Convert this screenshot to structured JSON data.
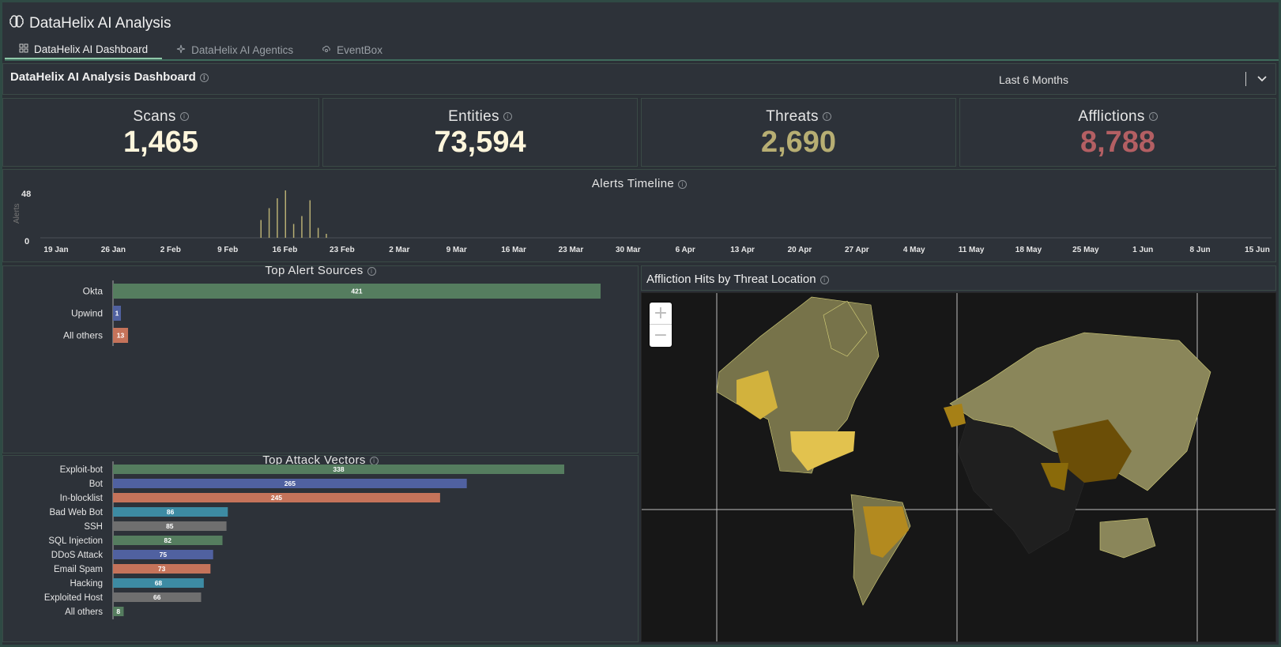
{
  "header": {
    "title": "DataHelix AI Analysis",
    "brand_icon": "brain-icon"
  },
  "tabs": [
    {
      "label": "DataHelix AI Dashboard",
      "icon": "dashboard-grid-icon",
      "active": true
    },
    {
      "label": "DataHelix AI Agentics",
      "icon": "sparkle-icon",
      "active": false
    },
    {
      "label": "EventBox",
      "icon": "cloud-search-icon",
      "active": false
    }
  ],
  "dashboard": {
    "title": "DataHelix AI Analysis Dashboard",
    "range": "Last 6 Months"
  },
  "kpis": [
    {
      "label": "Scans",
      "value": "1,465",
      "color": "#fff6dc"
    },
    {
      "label": "Entities",
      "value": "73,594",
      "color": "#fff6dc"
    },
    {
      "label": "Threats",
      "value": "2,690",
      "color": "#b7ae73"
    },
    {
      "label": "Afflictions",
      "value": "8,788",
      "color": "#b35f63"
    }
  ],
  "timeline": {
    "title": "Alerts Timeline",
    "ylabel": "Alerts",
    "ymax_label": "48",
    "ymin_label": "0",
    "xticks": [
      "19 Jan",
      "26 Jan",
      "2 Feb",
      "9 Feb",
      "16 Feb",
      "23 Feb",
      "2 Mar",
      "9 Mar",
      "16 Mar",
      "23 Mar",
      "30 Mar",
      "6 Apr",
      "13 Apr",
      "20 Apr",
      "27 Apr",
      "4 May",
      "11 May",
      "18 May",
      "25 May",
      "1 Jun",
      "8 Jun",
      "15 Jun"
    ]
  },
  "sources": {
    "title": "Top Alert Sources"
  },
  "vectors": {
    "title": "Top Attack Vectors"
  },
  "map": {
    "title": "Affliction Hits by Threat Location",
    "zoom_in": "+",
    "zoom_out": "−"
  },
  "colors": {
    "green": "#557d5f",
    "blue": "#5061a0",
    "orange": "#c5735a",
    "teal": "#3d8ba3",
    "gray": "#6f6f6f",
    "timeline_bar": "#b7ae73"
  },
  "chart_data": [
    {
      "type": "bar",
      "title": "Alerts Timeline",
      "ylabel": "Alerts",
      "ylim": [
        0,
        48
      ],
      "x": [
        "13 Feb",
        "14 Feb",
        "15 Feb",
        "16 Feb",
        "17 Feb",
        "18 Feb",
        "19 Feb",
        "20 Feb",
        "21 Feb"
      ],
      "values": [
        18,
        30,
        40,
        48,
        14,
        22,
        38,
        10,
        4
      ]
    },
    {
      "type": "bar",
      "title": "Top Alert Sources",
      "categories": [
        "Okta",
        "Upwind",
        "All others"
      ],
      "values": [
        421,
        1,
        13
      ]
    },
    {
      "type": "bar",
      "title": "Top Attack Vectors",
      "categories": [
        "Exploit-bot",
        "Bot",
        "In-blocklist",
        "Bad Web Bot",
        "SSH",
        "SQL Injection",
        "DDoS Attack",
        "Email Spam",
        "Hacking",
        "Exploited Host",
        "All others"
      ],
      "values": [
        338,
        265,
        245,
        86,
        85,
        82,
        75,
        73,
        68,
        66,
        8
      ]
    }
  ]
}
